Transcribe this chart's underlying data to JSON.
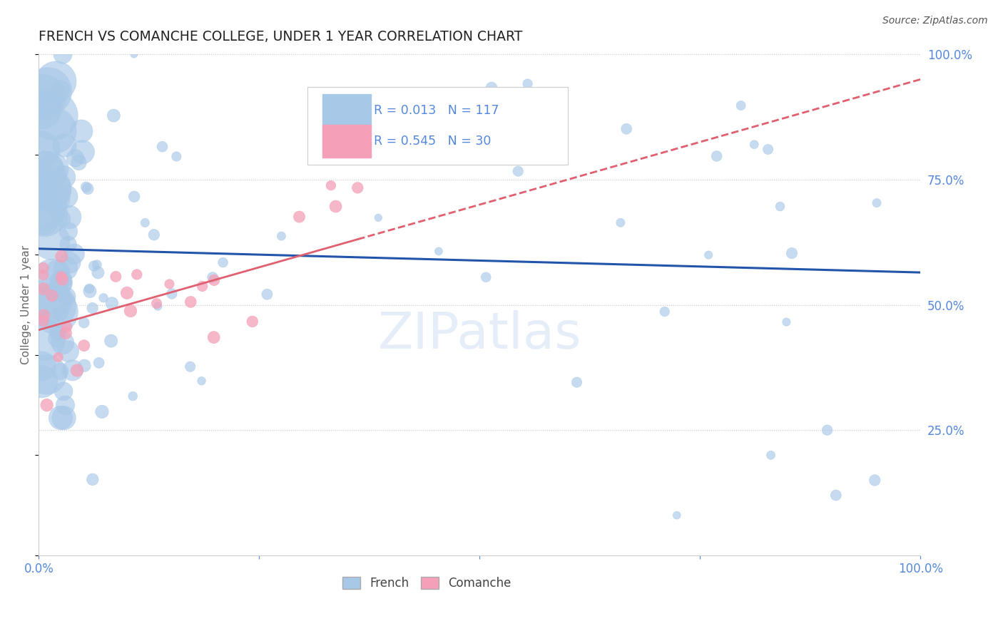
{
  "title": "FRENCH VS COMANCHE COLLEGE, UNDER 1 YEAR CORRELATION CHART",
  "source_text": "Source: ZipAtlas.com",
  "ylabel": "College, Under 1 year",
  "watermark": "ZIPatlas",
  "legend_french_r": "R = 0.013",
  "legend_french_n": "N = 117",
  "legend_comanche_r": "R = 0.545",
  "legend_comanche_n": "N = 30",
  "french_color": "#a8c8e8",
  "comanche_color": "#f4a0b8",
  "french_line_color": "#2255aa",
  "comanche_line_color": "#e06070",
  "background_color": "#ffffff",
  "grid_color": "#c8c8c8",
  "title_color": "#222222",
  "axis_label_color": "#5588dd",
  "right_axis_color": "#5588dd",
  "figsize": [
    14.06,
    8.92
  ],
  "dpi": 100
}
